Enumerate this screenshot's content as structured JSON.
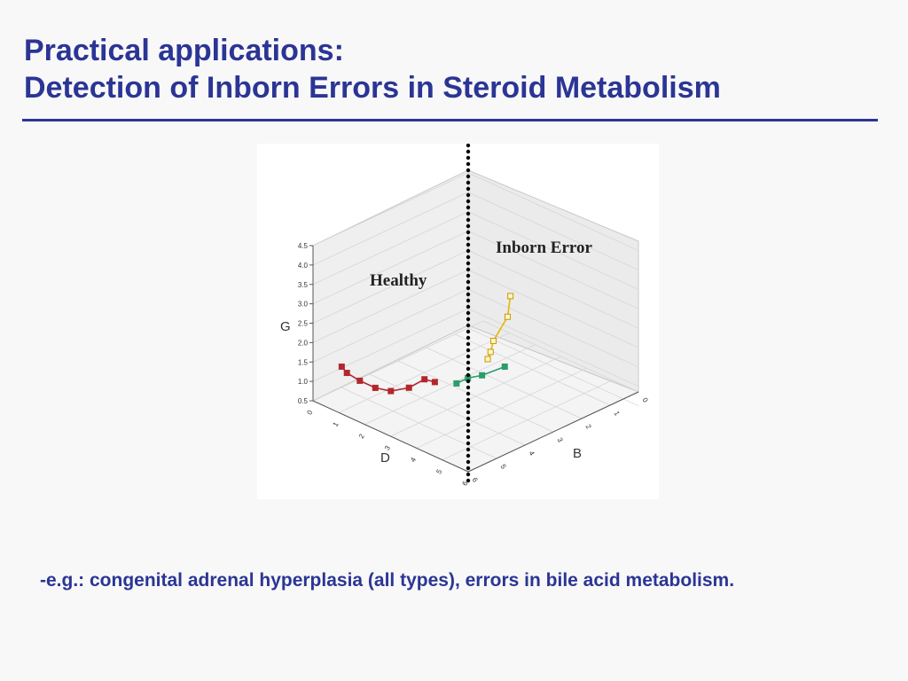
{
  "slide": {
    "title_line1": "Practical applications:",
    "title_line2": "Detection of Inborn Errors in Steroid Metabolism",
    "caption": "-e.g.: congenital adrenal hyperplasia (all types), errors in bile acid metabolism."
  },
  "colors": {
    "title": "#2b3595",
    "healthy": "#b3262e",
    "inborn_yellow": "#e6b800",
    "inborn_green": "#2a9d6a",
    "divider": "#000000"
  },
  "chart_data": {
    "type": "scatter",
    "projection": "3d",
    "axes": {
      "G": {
        "label": "G",
        "ticks": [
          "0.5",
          "1.0",
          "1.5",
          "2.0",
          "2.5",
          "3.0",
          "3.5",
          "4.0",
          "4.5"
        ],
        "range": [
          0.5,
          4.5
        ]
      },
      "D": {
        "label": "D",
        "ticks": [
          "0",
          "1",
          "2",
          "3",
          "4",
          "5",
          "6"
        ],
        "range": [
          0,
          6
        ]
      },
      "B": {
        "label": "B",
        "ticks": [
          "0",
          "1",
          "2",
          "3",
          "4",
          "5",
          "6"
        ],
        "range": [
          0,
          6
        ]
      }
    },
    "annotations": [
      "Healthy",
      "Inborn Error"
    ],
    "grid": true,
    "divider": "dotted vertical line separating groups",
    "series": [
      {
        "group": "Healthy",
        "color": "#b3262e",
        "points": [
          {
            "d": 4.6,
            "b": 0.1,
            "g": 2.35
          },
          {
            "d": 4.2,
            "b": 0.1,
            "g": 2.3
          },
          {
            "d": 3.6,
            "b": 0.1,
            "g": 1.9
          },
          {
            "d": 2.9,
            "b": 0.1,
            "g": 1.6
          },
          {
            "d": 2.3,
            "b": 0.1,
            "g": 1.5
          },
          {
            "d": 1.7,
            "b": 0.1,
            "g": 1.5
          },
          {
            "d": 1.2,
            "b": 0.1,
            "g": 1.55
          },
          {
            "d": 1.0,
            "b": 0.1,
            "g": 1.65
          }
        ]
      },
      {
        "group": "Inborn Error",
        "color": "#2a9d6a",
        "points": [
          {
            "d": 5.0,
            "b": 0.5,
            "g": 2.3
          },
          {
            "d": 5.0,
            "b": 0.9,
            "g": 2.3
          },
          {
            "d": 5.0,
            "b": 1.4,
            "g": 2.2
          },
          {
            "d": 5.0,
            "b": 2.2,
            "g": 2.15
          }
        ]
      },
      {
        "group": "Inborn Error",
        "color": "#e6b800",
        "points": [
          {
            "d": 5.0,
            "b": 1.6,
            "g": 2.55
          },
          {
            "d": 5.0,
            "b": 1.7,
            "g": 2.7
          },
          {
            "d": 5.0,
            "b": 1.8,
            "g": 2.95
          },
          {
            "d": 5.0,
            "b": 2.3,
            "g": 3.4
          },
          {
            "d": 5.0,
            "b": 2.4,
            "g": 3.9
          }
        ]
      }
    ]
  }
}
